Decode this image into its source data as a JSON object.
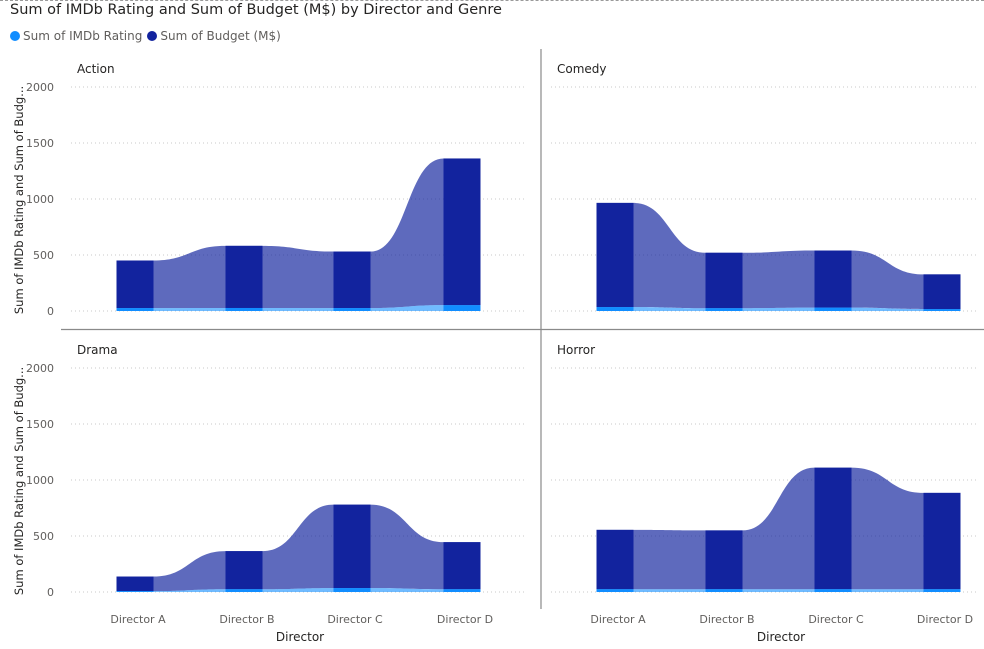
{
  "chart_data": {
    "type": "area",
    "title": "Sum of IMDb Rating and Sum of Budget (M$) by Director and Genre",
    "legend": [
      {
        "name": "Sum of IMDb Rating",
        "color": "#118DFF"
      },
      {
        "name": "Sum of Budget (M$)",
        "color": "#12239E"
      }
    ],
    "legend_position": "top-left",
    "ylabel": "Sum of IMDb Rating and Sum of Budg...",
    "xlabel": "Director",
    "ylim": [
      0,
      2000
    ],
    "yticks": [
      "0",
      "500",
      "1000",
      "1500",
      "2000"
    ],
    "grid": true,
    "categories": [
      "Director A",
      "Director B",
      "Director C",
      "Director D"
    ],
    "panels": [
      {
        "name": "Action",
        "imdb": [
          26,
          27,
          26,
          52
        ],
        "budget": [
          425,
          555,
          505,
          1310
        ]
      },
      {
        "name": "Comedy",
        "imdb": [
          35,
          25,
          30,
          17
        ],
        "budget": [
          930,
          495,
          510,
          310
        ]
      },
      {
        "name": "Drama",
        "imdb": [
          8,
          25,
          35,
          25
        ],
        "budget": [
          130,
          340,
          745,
          420
        ]
      },
      {
        "name": "Horror",
        "imdb": [
          25,
          25,
          25,
          25
        ],
        "budget": [
          530,
          525,
          1085,
          860
        ]
      }
    ]
  }
}
